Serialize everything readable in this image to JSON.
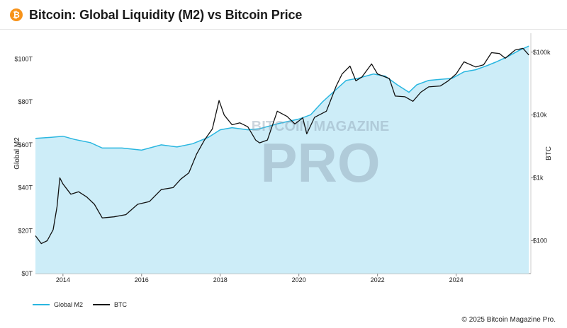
{
  "header": {
    "title": "Bitcoin: Global Liquidity (M2) vs Bitcoin Price",
    "badge_glyph": "₿",
    "badge_color": "#f7931a"
  },
  "footer": {
    "copyright": "© 2025 Bitcoin Magazine Pro."
  },
  "watermark": {
    "top_text": "BITCOIN MAGAZINE",
    "main_text": "PRO"
  },
  "chart_data": {
    "type": "area",
    "title": "Bitcoin: Global Liquidity (M2) vs Bitcoin Price",
    "y_left": {
      "label": "Global M2",
      "range": [
        0,
        112
      ],
      "ticks": [
        0,
        20,
        40,
        60,
        80,
        100
      ],
      "tick_labels": [
        "$0T",
        "$20T",
        "$40T",
        "$60T",
        "$80T",
        "$100T"
      ]
    },
    "y_right": {
      "label": "BTC",
      "scale": "log",
      "range": [
        30,
        200000
      ],
      "ticks": [
        100,
        1000,
        10000,
        100000
      ],
      "tick_labels": [
        "$100",
        "$1k",
        "$10k",
        "$100k"
      ]
    },
    "x_axis": {
      "range": [
        "2013-04",
        "2025-12"
      ],
      "ticks": [
        2014,
        2016,
        2018,
        2020,
        2022,
        2024
      ],
      "tick_labels": [
        "2014",
        "2016",
        "2018",
        "2020",
        "2022",
        "2024"
      ]
    },
    "grid": false,
    "legend_position": "bottom-left",
    "series": [
      {
        "name": "Global M2",
        "axis": "left",
        "color": "#29b6e0",
        "fill": "#cdedf8",
        "points": [
          [
            2013.3,
            63
          ],
          [
            2013.7,
            63.5
          ],
          [
            2014.0,
            64
          ],
          [
            2014.3,
            62.5
          ],
          [
            2014.7,
            61
          ],
          [
            2015.0,
            58.5
          ],
          [
            2015.5,
            58.5
          ],
          [
            2016.0,
            57.5
          ],
          [
            2016.5,
            60
          ],
          [
            2016.9,
            59
          ],
          [
            2017.3,
            60.5
          ],
          [
            2017.7,
            63.5
          ],
          [
            2018.0,
            67
          ],
          [
            2018.3,
            68
          ],
          [
            2018.7,
            67
          ],
          [
            2019.0,
            67.5
          ],
          [
            2019.5,
            70
          ],
          [
            2020.0,
            72
          ],
          [
            2020.3,
            74
          ],
          [
            2020.6,
            80
          ],
          [
            2020.9,
            85
          ],
          [
            2021.2,
            90
          ],
          [
            2021.5,
            91
          ],
          [
            2021.9,
            93
          ],
          [
            2022.2,
            92
          ],
          [
            2022.5,
            88
          ],
          [
            2022.8,
            84.5
          ],
          [
            2023.0,
            88
          ],
          [
            2023.3,
            90
          ],
          [
            2023.6,
            90.5
          ],
          [
            2023.9,
            91
          ],
          [
            2024.2,
            94
          ],
          [
            2024.5,
            95
          ],
          [
            2024.8,
            97
          ],
          [
            2025.0,
            98.5
          ],
          [
            2025.3,
            101
          ],
          [
            2025.6,
            104
          ],
          [
            2025.85,
            106
          ]
        ]
      },
      {
        "name": "BTC",
        "axis": "right",
        "color": "#111111",
        "points": [
          [
            2013.3,
            120
          ],
          [
            2013.45,
            90
          ],
          [
            2013.6,
            100
          ],
          [
            2013.75,
            150
          ],
          [
            2013.85,
            350
          ],
          [
            2013.92,
            1000
          ],
          [
            2014.0,
            800
          ],
          [
            2014.2,
            550
          ],
          [
            2014.4,
            600
          ],
          [
            2014.6,
            500
          ],
          [
            2014.8,
            380
          ],
          [
            2015.0,
            230
          ],
          [
            2015.3,
            240
          ],
          [
            2015.6,
            260
          ],
          [
            2015.9,
            380
          ],
          [
            2016.2,
            420
          ],
          [
            2016.5,
            650
          ],
          [
            2016.8,
            700
          ],
          [
            2017.0,
            960
          ],
          [
            2017.2,
            1200
          ],
          [
            2017.4,
            2400
          ],
          [
            2017.6,
            4000
          ],
          [
            2017.8,
            6000
          ],
          [
            2017.97,
            17000
          ],
          [
            2018.1,
            10000
          ],
          [
            2018.3,
            7000
          ],
          [
            2018.5,
            7500
          ],
          [
            2018.7,
            6500
          ],
          [
            2018.9,
            4000
          ],
          [
            2019.0,
            3600
          ],
          [
            2019.2,
            4000
          ],
          [
            2019.45,
            11500
          ],
          [
            2019.7,
            9500
          ],
          [
            2019.9,
            7200
          ],
          [
            2020.1,
            9000
          ],
          [
            2020.2,
            5000
          ],
          [
            2020.4,
            9200
          ],
          [
            2020.7,
            11500
          ],
          [
            2020.95,
            29000
          ],
          [
            2021.1,
            45000
          ],
          [
            2021.3,
            60000
          ],
          [
            2021.45,
            35000
          ],
          [
            2021.6,
            40000
          ],
          [
            2021.85,
            65000
          ],
          [
            2022.0,
            45000
          ],
          [
            2022.3,
            38000
          ],
          [
            2022.45,
            20000
          ],
          [
            2022.7,
            19500
          ],
          [
            2022.9,
            16500
          ],
          [
            2023.1,
            23000
          ],
          [
            2023.3,
            28000
          ],
          [
            2023.6,
            29000
          ],
          [
            2023.8,
            35000
          ],
          [
            2024.0,
            45000
          ],
          [
            2024.2,
            70000
          ],
          [
            2024.5,
            58000
          ],
          [
            2024.7,
            63000
          ],
          [
            2024.9,
            98000
          ],
          [
            2025.1,
            95000
          ],
          [
            2025.25,
            80000
          ],
          [
            2025.5,
            108000
          ],
          [
            2025.7,
            115000
          ],
          [
            2025.85,
            90000
          ]
        ]
      }
    ]
  }
}
